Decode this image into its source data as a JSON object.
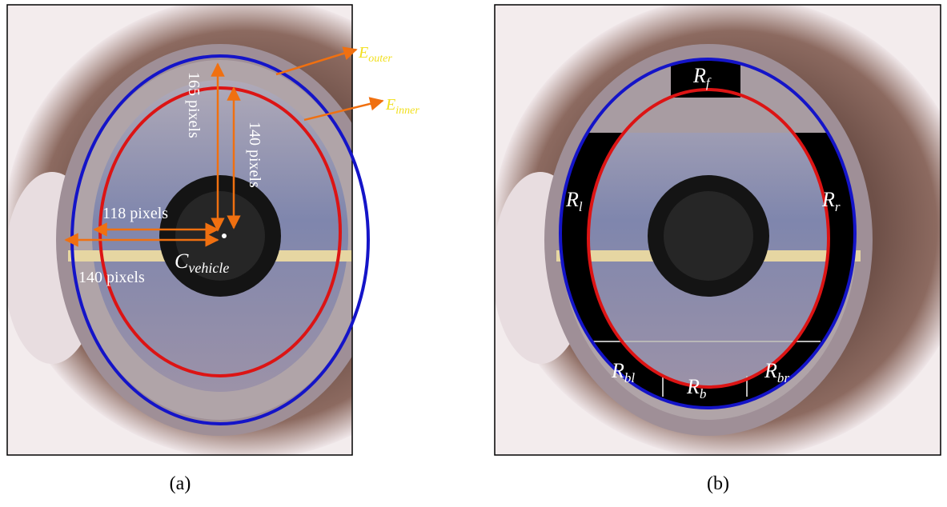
{
  "panels": [
    {
      "caption": "(a)",
      "measures": [
        "165 pixels",
        "140 pixels",
        "118 pixels",
        "140 pixels"
      ],
      "center": {
        "main": "C",
        "sub": "vehicle"
      },
      "ellipses": [
        {
          "main": "E",
          "sub": "outer"
        },
        {
          "main": "E",
          "sub": "inner"
        }
      ]
    },
    {
      "caption": "(b)",
      "regions": [
        {
          "main": "R",
          "sub": "f"
        },
        {
          "main": "R",
          "sub": "l"
        },
        {
          "main": "R",
          "sub": "r"
        },
        {
          "main": "R",
          "sub": "bl"
        },
        {
          "main": "R",
          "sub": "b"
        },
        {
          "main": "R",
          "sub": "br"
        }
      ]
    }
  ]
}
